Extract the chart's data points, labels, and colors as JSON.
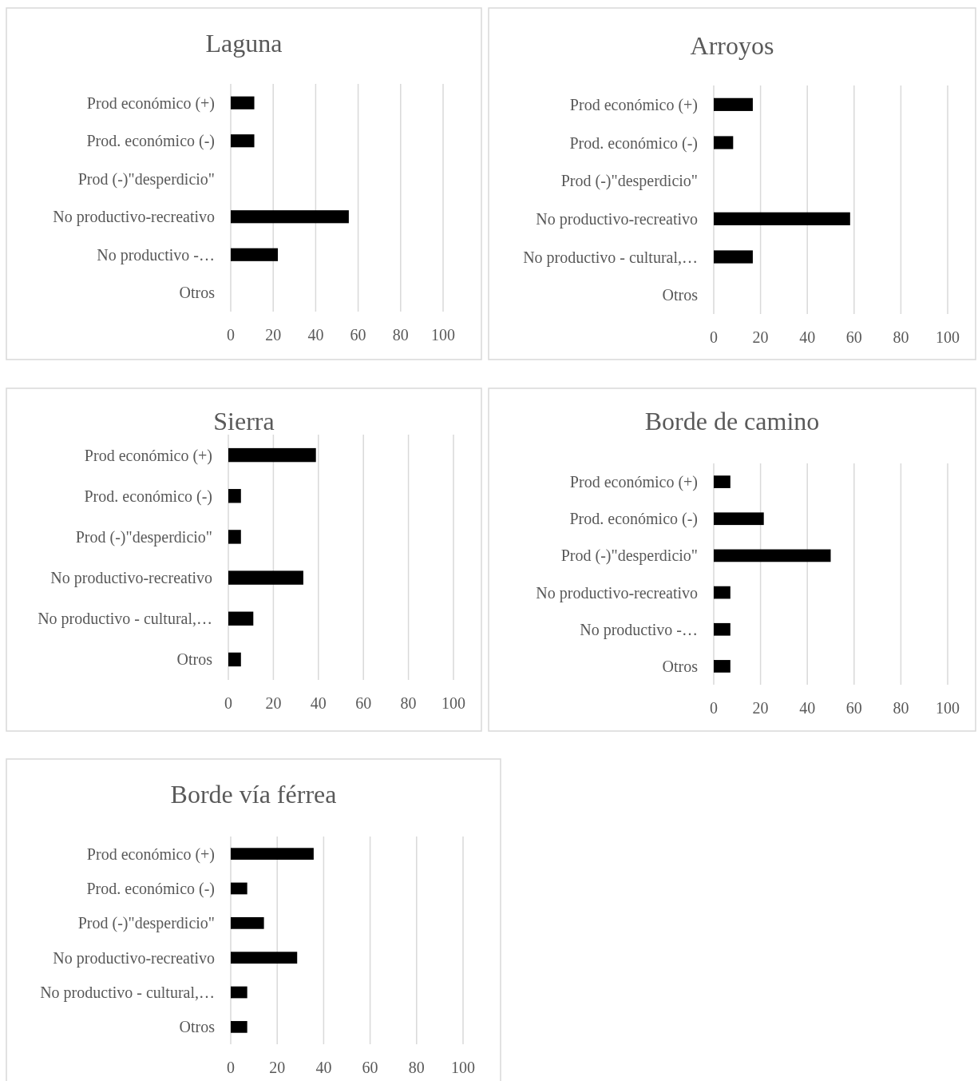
{
  "chart_data": [
    {
      "type": "bar",
      "orientation": "horizontal",
      "title": "Laguna",
      "categories": [
        "Prod económico (+)",
        "Prod. económico (-)",
        "Prod (-)\"desperdicio\"",
        "No productivo-recreativo",
        "No productivo -…",
        "Otros"
      ],
      "values": [
        11.1,
        11.1,
        0,
        55.6,
        22.2,
        0
      ],
      "color": "#000000",
      "xlim": [
        0,
        100
      ],
      "xticks": [
        0,
        20,
        40,
        60,
        80,
        100
      ],
      "grid": "x"
    },
    {
      "type": "bar",
      "orientation": "horizontal",
      "title": "Arroyos",
      "categories": [
        "Prod económico (+)",
        "Prod. económico (-)",
        "Prod (-)\"desperdicio\"",
        "No productivo-recreativo",
        "No productivo - cultural,…",
        "Otros"
      ],
      "values": [
        16.7,
        8.3,
        0,
        58.3,
        16.7,
        0
      ],
      "color": "#000000",
      "xlim": [
        0,
        100
      ],
      "xticks": [
        0,
        20,
        40,
        60,
        80,
        100
      ],
      "grid": "x"
    },
    {
      "type": "bar",
      "orientation": "horizontal",
      "title": "Sierra",
      "categories": [
        "Prod económico (+)",
        "Prod. económico (-)",
        "Prod (-)\"desperdicio\"",
        "No productivo-recreativo",
        "No productivo - cultural,…",
        "Otros"
      ],
      "values": [
        38.9,
        5.6,
        5.6,
        33.3,
        11.1,
        5.6
      ],
      "color": "#000000",
      "xlim": [
        0,
        100
      ],
      "xticks": [
        0,
        20,
        40,
        60,
        80,
        100
      ],
      "grid": "x"
    },
    {
      "type": "bar",
      "orientation": "horizontal",
      "title": "Borde de camino",
      "categories": [
        "Prod económico (+)",
        "Prod. económico (-)",
        "Prod (-)\"desperdicio\"",
        "No productivo-recreativo",
        "No productivo -…",
        "Otros"
      ],
      "values": [
        7.1,
        21.4,
        50,
        7.1,
        7.1,
        7.1
      ],
      "color": "#000000",
      "xlim": [
        0,
        100
      ],
      "xticks": [
        0,
        20,
        40,
        60,
        80,
        100
      ],
      "grid": "x"
    },
    {
      "type": "bar",
      "orientation": "horizontal",
      "title": "Borde vía férrea",
      "categories": [
        "Prod económico (+)",
        "Prod. económico (-)",
        "Prod (-)\"desperdicio\"",
        "No productivo-recreativo",
        "No productivo - cultural,…",
        "Otros"
      ],
      "values": [
        35.7,
        7.1,
        14.3,
        28.6,
        7.1,
        7.1
      ],
      "color": "#000000",
      "xlim": [
        0,
        100
      ],
      "xticks": [
        0,
        20,
        40,
        60,
        80,
        100
      ],
      "grid": "x"
    }
  ]
}
